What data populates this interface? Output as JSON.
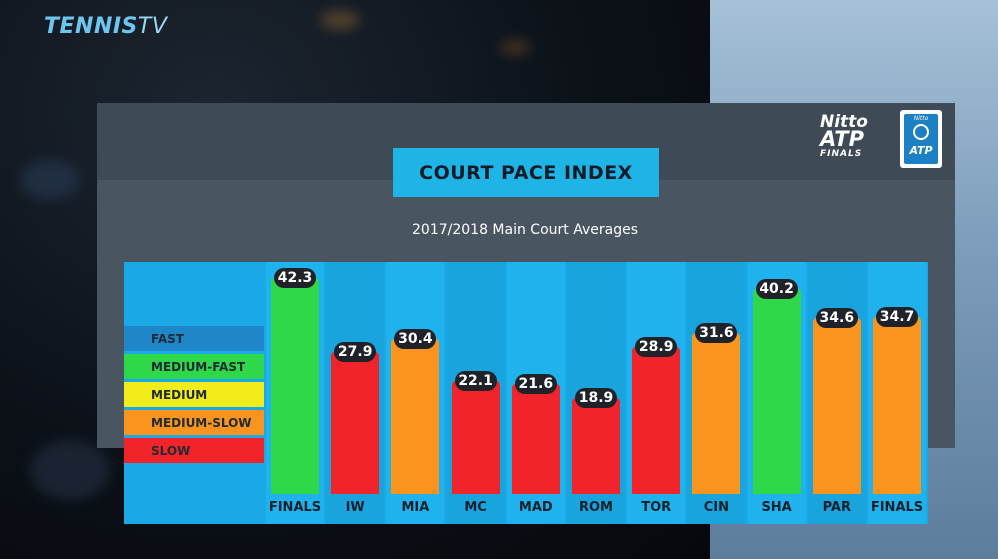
{
  "brand": {
    "name": "TENNIS",
    "suffix": "TV"
  },
  "logo": {
    "line1": "Nitto",
    "line2": "ATP",
    "line3": "FINALS",
    "badge_small": "Nitto",
    "badge_text": "ATP"
  },
  "chart_data": {
    "type": "bar",
    "title": "COURT PACE INDEX",
    "subtitle": "2017/2018 Main Court Averages",
    "categories": [
      "FINALS",
      "IW",
      "MIA",
      "MC",
      "MAD",
      "ROM",
      "TOR",
      "CIN",
      "SHA",
      "PAR",
      "FINALS"
    ],
    "values": [
      42.3,
      27.9,
      30.4,
      22.1,
      21.6,
      18.9,
      28.9,
      31.6,
      40.2,
      34.6,
      34.7
    ],
    "bar_classes": [
      "MEDIUM-FAST",
      "SLOW",
      "MEDIUM-SLOW",
      "SLOW",
      "SLOW",
      "SLOW",
      "SLOW",
      "MEDIUM-SLOW",
      "MEDIUM-FAST",
      "MEDIUM-SLOW",
      "MEDIUM-SLOW"
    ],
    "legend": [
      {
        "label": "FAST",
        "color": "#1f86c8"
      },
      {
        "label": "MEDIUM-FAST",
        "color": "#2ed84a"
      },
      {
        "label": "MEDIUM",
        "color": "#f2ec1a"
      },
      {
        "label": "MEDIUM-SLOW",
        "color": "#f9941e"
      },
      {
        "label": "SLOW",
        "color": "#f0242a"
      }
    ],
    "legend_placement": "left",
    "grid": false
  }
}
